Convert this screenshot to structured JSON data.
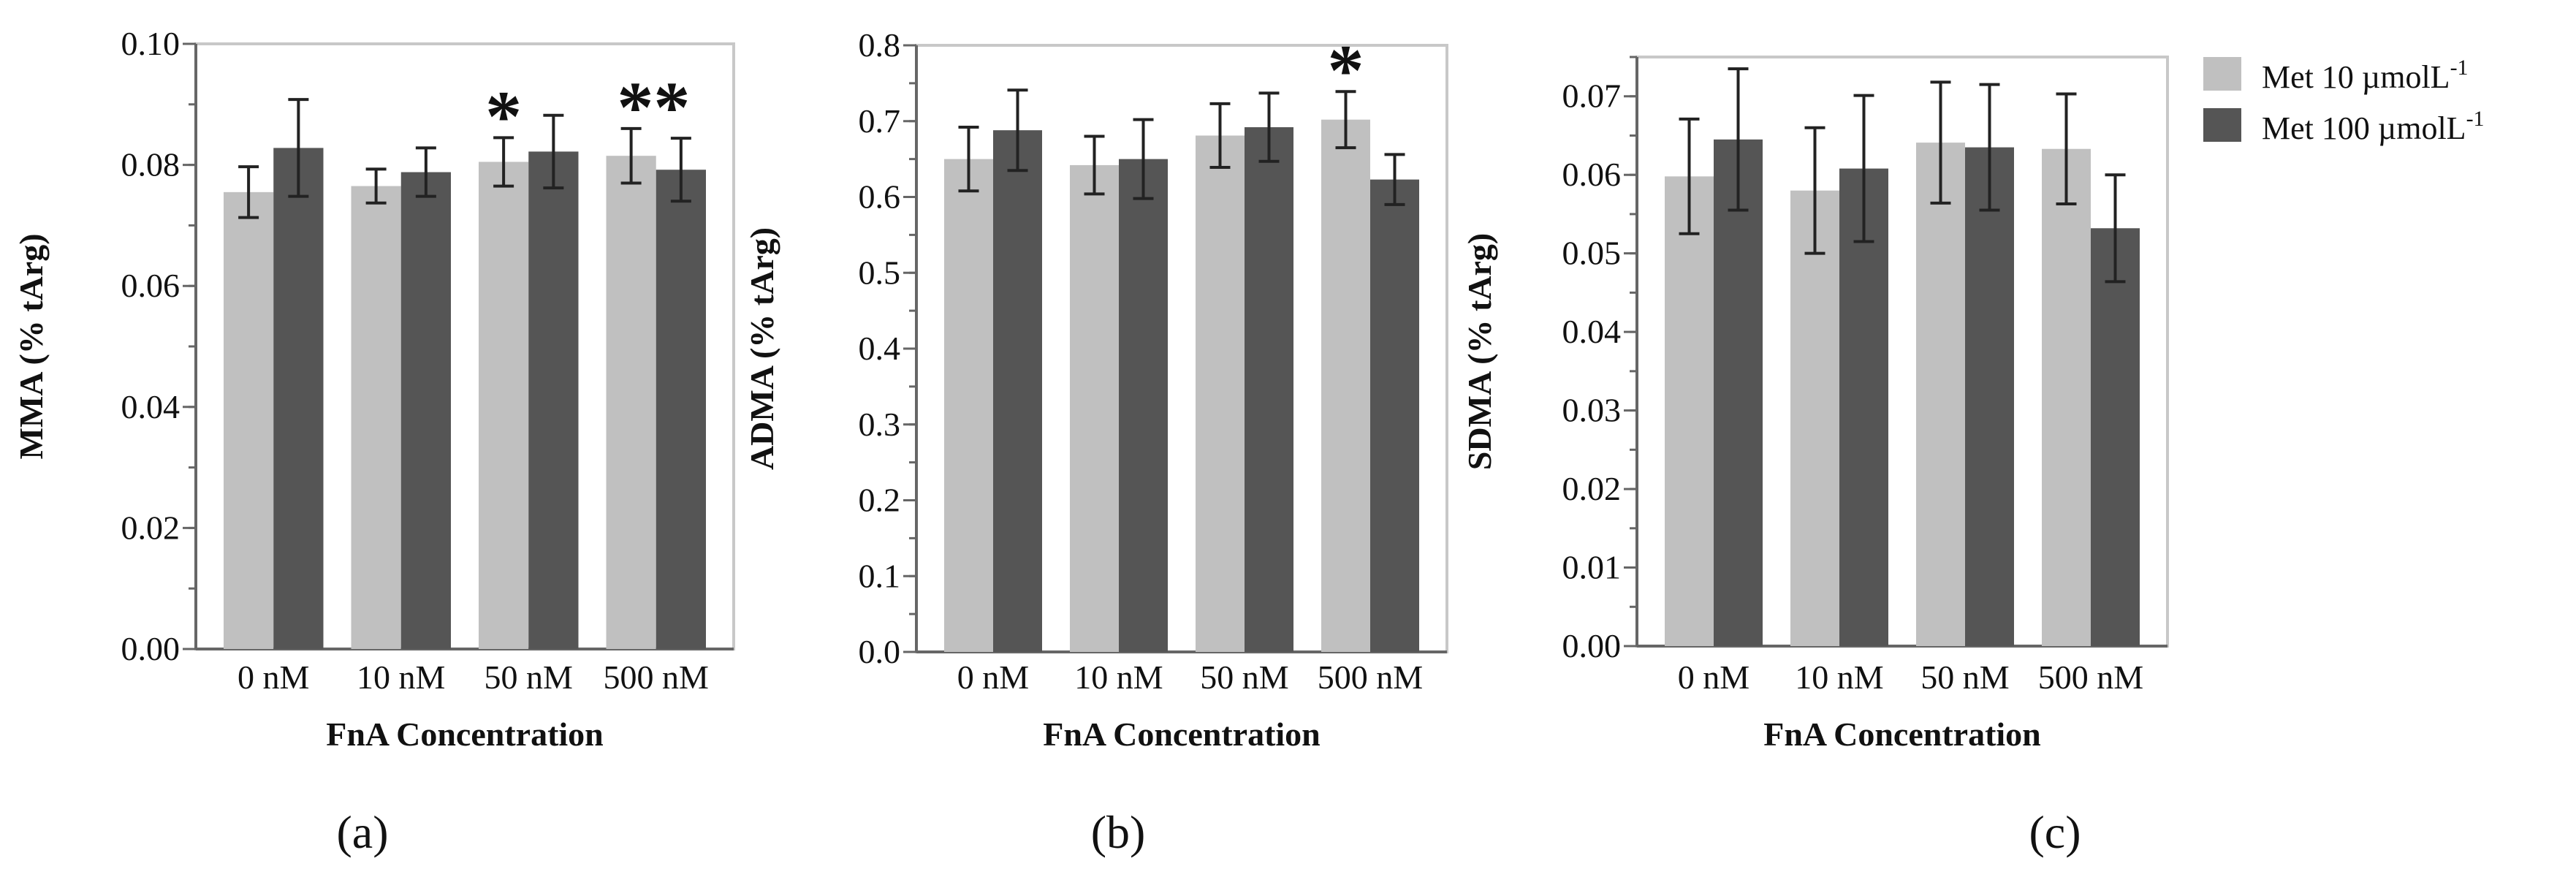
{
  "legend": [
    {
      "label": "Met 10 µmolL",
      "sup": "-1",
      "color": "#c0c0c0"
    },
    {
      "label": "Met 100 µmolL",
      "sup": "-1",
      "color": "#555555"
    }
  ],
  "chart_data": [
    {
      "type": "bar",
      "panel_label": "(a)",
      "title": "",
      "xlabel": "FnA Concentration",
      "ylabel": "MMA (% tArg)",
      "categories": [
        "0 nM",
        "10 nM",
        "50 nM",
        "500 nM"
      ],
      "ylim": [
        0,
        0.1
      ],
      "yticks": [
        0.0,
        0.02,
        0.04,
        0.06,
        0.08,
        0.1
      ],
      "ytick_labels": [
        "0.00",
        "0.02",
        "0.04",
        "0.06",
        "0.08",
        "0.10"
      ],
      "minor_step": 0.01,
      "series": [
        {
          "name": "Met 10 µmolL-1",
          "color": "#c0c0c0",
          "values": [
            0.0755,
            0.0765,
            0.0805,
            0.0815
          ],
          "errors": [
            0.0042,
            0.0028,
            0.004,
            0.0045
          ]
        },
        {
          "name": "Met 100 µmolL-1",
          "color": "#555555",
          "values": [
            0.0828,
            0.0788,
            0.0822,
            0.0792
          ],
          "errors": [
            0.008,
            0.004,
            0.006,
            0.0052
          ]
        }
      ],
      "annotations": [
        {
          "text": "*",
          "category": 2,
          "series": 0
        },
        {
          "text": "**",
          "category": 3,
          "series": 0
        }
      ]
    },
    {
      "type": "bar",
      "panel_label": "(b)",
      "title": "",
      "xlabel": "FnA Concentration",
      "ylabel": "ADMA (% tArg)",
      "categories": [
        "0 nM",
        "10 nM",
        "50 nM",
        "500 nM"
      ],
      "ylim": [
        0,
        0.8
      ],
      "yticks": [
        0.0,
        0.1,
        0.2,
        0.3,
        0.4,
        0.5,
        0.6,
        0.7,
        0.8
      ],
      "ytick_labels": [
        "0.0",
        "0.1",
        "0.2",
        "0.3",
        "0.4",
        "0.5",
        "0.6",
        "0.7",
        "0.8"
      ],
      "minor_step": 0.05,
      "series": [
        {
          "name": "Met 10 µmolL-1",
          "color": "#c0c0c0",
          "values": [
            0.65,
            0.642,
            0.681,
            0.702
          ],
          "errors": [
            0.042,
            0.038,
            0.042,
            0.037
          ]
        },
        {
          "name": "Met 100 µmolL-1",
          "color": "#555555",
          "values": [
            0.688,
            0.65,
            0.692,
            0.623
          ],
          "errors": [
            0.053,
            0.052,
            0.045,
            0.033
          ]
        }
      ],
      "annotations": [
        {
          "text": "*",
          "category": 3,
          "series": 0
        }
      ]
    },
    {
      "type": "bar",
      "panel_label": "(c)",
      "title": "",
      "xlabel": "FnA Concentration",
      "ylabel": "SDMA (% tArg)",
      "categories": [
        "0 nM",
        "10 nM",
        "50 nM",
        "500 nM"
      ],
      "ylim": [
        0,
        0.075
      ],
      "yticks": [
        0.0,
        0.01,
        0.02,
        0.03,
        0.04,
        0.05,
        0.06,
        0.07
      ],
      "ytick_labels": [
        "0.00",
        "0.01",
        "0.02",
        "0.03",
        "0.04",
        "0.05",
        "0.06",
        "0.07"
      ],
      "minor_step": 0.005,
      "series": [
        {
          "name": "Met 10 µmolL-1",
          "color": "#c0c0c0",
          "values": [
            0.0598,
            0.058,
            0.0641,
            0.0633
          ],
          "errors": [
            0.0073,
            0.008,
            0.0077,
            0.007
          ]
        },
        {
          "name": "Met 100 µmolL-1",
          "color": "#555555",
          "values": [
            0.0645,
            0.0608,
            0.0635,
            0.0532
          ],
          "errors": [
            0.009,
            0.0093,
            0.008,
            0.0068
          ]
        }
      ],
      "annotations": []
    }
  ]
}
